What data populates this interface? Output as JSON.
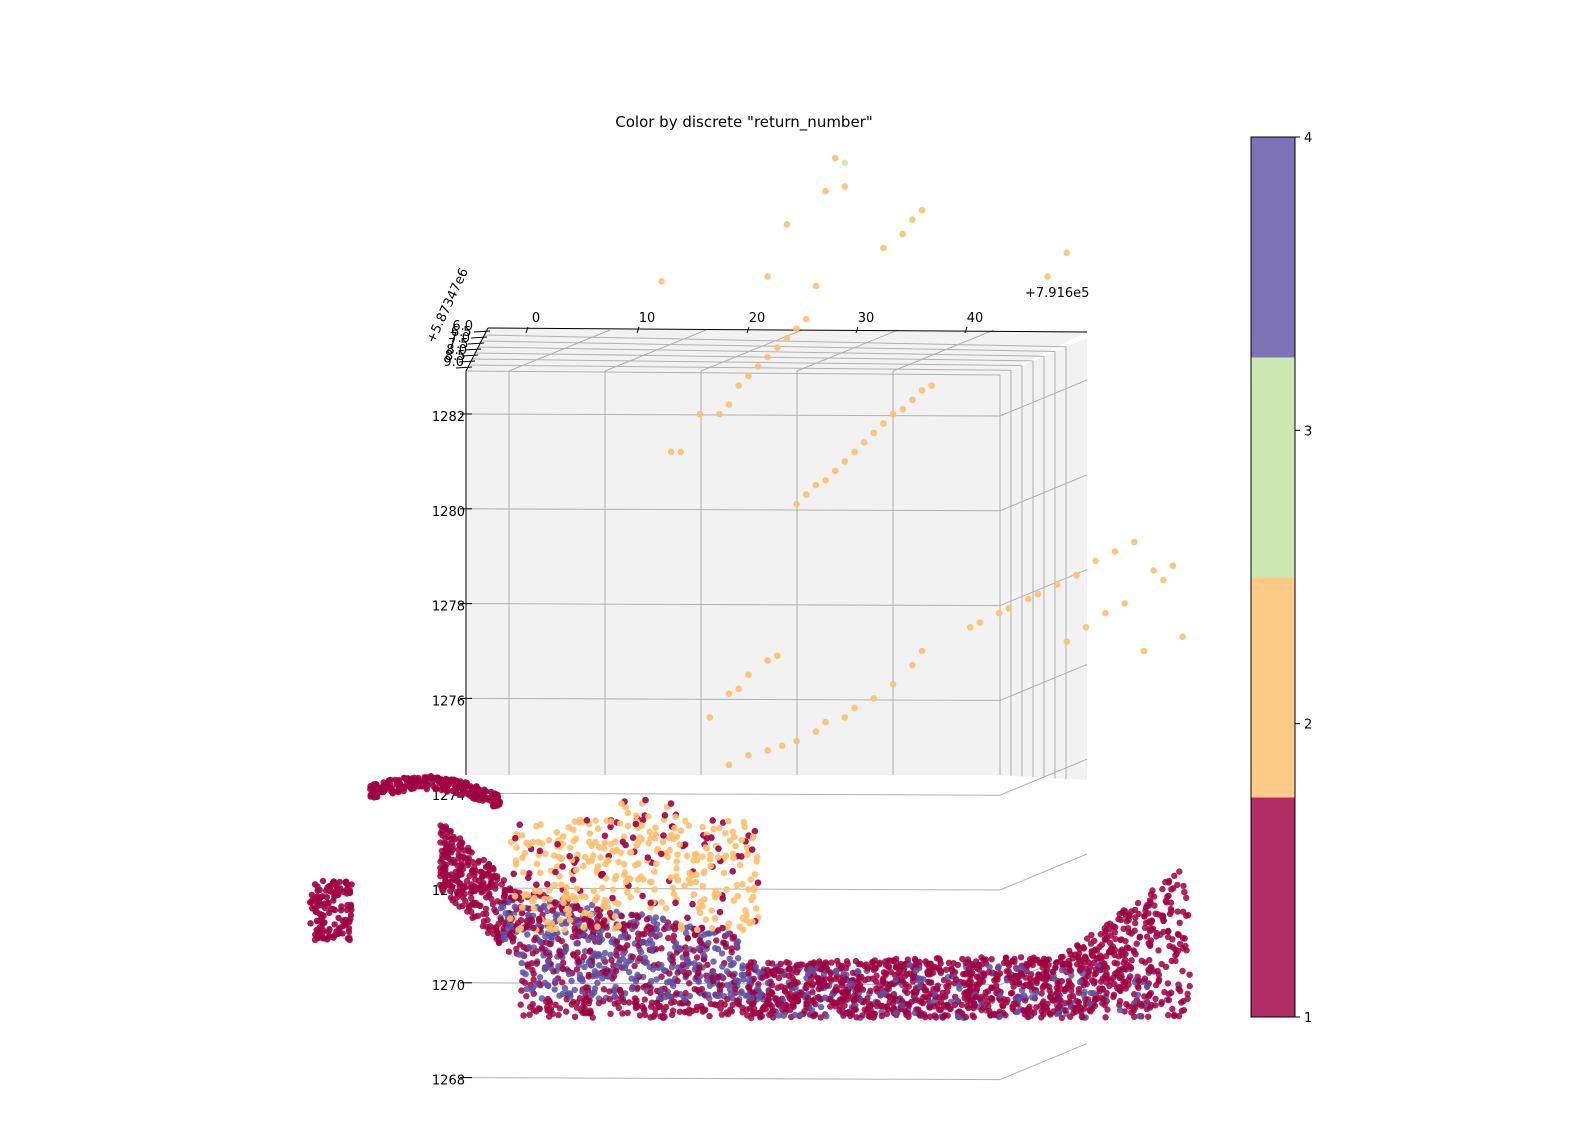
{
  "chart_data": {
    "type": "scatter",
    "title": "Color by discrete \"return_number\"",
    "x_axis": {
      "offset_label": "+7.916e5",
      "ticks": [
        "0",
        "10",
        "20",
        "30",
        "40"
      ]
    },
    "y_axis": {
      "offset_label": "+5.87347e6",
      "ticks": [
        "6.0",
        "6.5",
        "7.0",
        "7.5",
        "8.0",
        "8.5",
        "9.0"
      ]
    },
    "z_axis": {
      "ticks": [
        "1282",
        "1280",
        "1278",
        "1276",
        "1274",
        "1272",
        "1270",
        "1268"
      ]
    },
    "grid": true,
    "colorbar": {
      "ticks": [
        "1",
        "2",
        "3",
        "4"
      ],
      "levels": [
        {
          "value": 1,
          "color": "#ae2d65"
        },
        {
          "value": 2,
          "color": "#fdcb88"
        },
        {
          "value": 3,
          "color": "#cce8b2"
        },
        {
          "value": 4,
          "color": "#7e73b6"
        }
      ]
    },
    "point_colors": {
      "1": "#9e0142",
      "2": "#fdbf6f",
      "3": "#c7e9ad",
      "4": "#5e4fa2"
    },
    "series": [
      {
        "return_number": 2,
        "points": [
          [
            8,
            1294.5,
            7.5
          ],
          [
            17,
            1293.6,
            7.5
          ],
          [
            18,
            1293.5,
            7.3
          ],
          [
            21,
            1292.5,
            7.0
          ],
          [
            25,
            1290.3,
            7.5
          ],
          [
            28,
            1289.3,
            7.6
          ],
          [
            29,
            1289.5,
            7.4
          ],
          [
            30,
            1286.7,
            7.6
          ],
          [
            32,
            1286.8,
            7.4
          ],
          [
            36,
            1285.5,
            7.5
          ],
          [
            38,
            1285.8,
            7.4
          ],
          [
            39,
            1286.1,
            7.5
          ],
          [
            40,
            1286.3,
            7.6
          ],
          [
            13,
            1284.8,
            7.4
          ],
          [
            20,
            1287.8,
            7.3
          ],
          [
            26,
            1286.0,
            7.2
          ],
          [
            24,
            1284.9,
            7.5
          ],
          [
            29,
            1284.7,
            7.8
          ],
          [
            31,
            1287.4,
            7.5
          ],
          [
            14.0,
            1281.2,
            7.0
          ],
          [
            15.0,
            1281.2,
            7.0
          ],
          [
            17.0,
            1282.0,
            7.0
          ],
          [
            19.0,
            1282.0,
            7.0
          ],
          [
            20.0,
            1282.2,
            7.0
          ],
          [
            21.0,
            1282.6,
            7.0
          ],
          [
            22.0,
            1282.8,
            7.0
          ],
          [
            23.0,
            1283.0,
            7.0
          ],
          [
            24.0,
            1283.2,
            7.0
          ],
          [
            25.0,
            1283.4,
            7.0
          ],
          [
            26.0,
            1283.6,
            7.0
          ],
          [
            27.0,
            1283.8,
            7.0
          ],
          [
            28.0,
            1284.0,
            7.0
          ],
          [
            27.0,
            1280.1,
            7.0
          ],
          [
            28.0,
            1280.3,
            7.0
          ],
          [
            29.0,
            1280.5,
            7.0
          ],
          [
            30.0,
            1280.6,
            7.0
          ],
          [
            31.0,
            1280.8,
            7.0
          ],
          [
            32.0,
            1281.0,
            7.0
          ],
          [
            33.0,
            1281.2,
            7.0
          ],
          [
            34.0,
            1281.4,
            7.0
          ],
          [
            35.0,
            1281.6,
            7.0
          ],
          [
            36.0,
            1281.8,
            7.0
          ],
          [
            37.0,
            1282.0,
            7.0
          ],
          [
            38.0,
            1282.1,
            7.0
          ],
          [
            39.0,
            1282.3,
            7.0
          ],
          [
            40.0,
            1282.5,
            7.0
          ],
          [
            41.0,
            1282.6,
            7.0
          ],
          [
            18.0,
            1275.6,
            7.0
          ],
          [
            20.0,
            1276.1,
            7.0
          ],
          [
            21.0,
            1276.2,
            7.0
          ],
          [
            22.0,
            1276.5,
            7.0
          ],
          [
            24.0,
            1276.8,
            7.0
          ],
          [
            25.0,
            1276.9,
            7.0
          ],
          [
            20.0,
            1274.6,
            7.0
          ],
          [
            22.0,
            1274.8,
            7.0
          ],
          [
            24.0,
            1274.9,
            7.0
          ],
          [
            25.5,
            1275.0,
            7.0
          ],
          [
            27.0,
            1275.1,
            7.0
          ],
          [
            29.0,
            1275.3,
            7.0
          ],
          [
            30.0,
            1275.5,
            7.0
          ],
          [
            32.0,
            1275.6,
            7.0
          ],
          [
            33.0,
            1275.8,
            7.0
          ],
          [
            35.0,
            1276.0,
            7.0
          ],
          [
            37.0,
            1276.3,
            7.0
          ],
          [
            39.0,
            1276.7,
            7.0
          ],
          [
            40.0,
            1277.0,
            7.0
          ],
          [
            45.0,
            1277.5,
            7.0
          ],
          [
            46.0,
            1277.6,
            7.0
          ],
          [
            48.0,
            1277.8,
            7.0
          ],
          [
            49.0,
            1277.9,
            7.0
          ],
          [
            51.0,
            1278.1,
            7.0
          ],
          [
            52.0,
            1278.2,
            7.0
          ],
          [
            54.0,
            1278.4,
            7.0
          ],
          [
            56.0,
            1278.6,
            7.0
          ],
          [
            58.0,
            1278.9,
            7.0
          ],
          [
            60.0,
            1279.1,
            7.0
          ],
          [
            62.0,
            1279.3,
            7.0
          ],
          [
            64.0,
            1278.7,
            7.0
          ],
          [
            65.0,
            1278.5,
            7.0
          ],
          [
            66.0,
            1278.8,
            7.0
          ],
          [
            68.0,
            1279.0,
            7.0
          ],
          [
            55.0,
            1277.2,
            7.0
          ],
          [
            57.0,
            1277.5,
            7.0
          ],
          [
            59.0,
            1277.8,
            7.0
          ],
          [
            61.0,
            1278.0,
            7.0
          ],
          [
            63.0,
            1277.0,
            7.0
          ],
          [
            67.0,
            1277.3,
            7.0
          ],
          [
            70.0,
            1278.9,
            7.0
          ],
          [
            71.0,
            1279.0,
            7.0
          ],
          [
            53.0,
            1284.9,
            7.0
          ],
          [
            55.0,
            1285.4,
            7.0
          ],
          [
            5.0,
            1260.6,
            7.2
          ],
          [
            7.0,
            1260.8,
            7.2
          ],
          [
            8.0,
            1260.1,
            7.2
          ],
          [
            9.0,
            1260.5,
            7.2
          ],
          [
            10.0,
            1260.9,
            7.2
          ],
          [
            11.0,
            1259.8,
            7.2
          ],
          [
            12.0,
            1260.2,
            7.2
          ],
          [
            13.0,
            1259.4,
            7.2
          ],
          [
            14.0,
            1259.9,
            7.2
          ],
          [
            15.0,
            1260.3,
            7.2
          ],
          [
            16.0,
            1259.1,
            7.2
          ],
          [
            17.0,
            1258.7,
            7.2
          ],
          [
            18.0,
            1258.4,
            7.2
          ],
          [
            19.0,
            1258.9,
            7.2
          ],
          [
            20.0,
            1259.3,
            7.2
          ],
          [
            6.0,
            1259.2,
            7.2
          ],
          [
            7.5,
            1258.9,
            7.2
          ],
          [
            9.5,
            1258.6,
            7.2
          ],
          [
            11.5,
            1258.3,
            7.2
          ],
          [
            13.5,
            1258.0,
            7.2
          ],
          [
            15.5,
            1257.7,
            7.2
          ],
          [
            17.5,
            1257.4,
            7.2
          ],
          [
            19.5,
            1257.9,
            7.2
          ],
          [
            21.0,
            1257.6,
            7.2
          ],
          [
            22.0,
            1257.2,
            7.2
          ],
          [
            10.5,
            1261.4,
            7.2
          ],
          [
            12.5,
            1261.1,
            7.2
          ],
          [
            14.5,
            1260.8,
            7.2
          ],
          [
            16.5,
            1260.4,
            7.2
          ],
          [
            18.5,
            1260.0,
            7.2
          ],
          [
            6.5,
            1261.2,
            7.2
          ],
          [
            8.5,
            1261.6,
            7.2
          ],
          [
            15.0,
            1261.9,
            7.2
          ],
          [
            16.0,
            1261.3,
            7.2
          ],
          [
            17.0,
            1260.9,
            7.2
          ]
        ]
      },
      {
        "return_number": 3,
        "points": [
          [
            32,
            1287.3,
            7.5
          ],
          [
            41,
            1289.8,
            7.4
          ],
          [
            24,
            1257.0,
            7.2
          ],
          [
            28,
            1256.4,
            7.2
          ],
          [
            34,
            1255.3,
            7.2
          ],
          [
            13,
            1258.4,
            7.2
          ]
        ]
      },
      {
        "return_number": 1,
        "points": [
          [
            -12,
            1261.5,
            7.0
          ],
          [
            -10,
            1261.9,
            7.0
          ],
          [
            -8,
            1261.8,
            7.0
          ],
          [
            -6,
            1261.6,
            7.0
          ],
          [
            -4,
            1261.3,
            7.0
          ],
          [
            -2,
            1261.1,
            7.0
          ],
          [
            -1,
            1260.8,
            7.0
          ],
          [
            -14,
            1261.3,
            7.0
          ],
          [
            -5,
            1259.9,
            7.0
          ],
          [
            -3,
            1259.2,
            7.0
          ],
          [
            -1,
            1258.3,
            7.0
          ],
          [
            1,
            1257.5,
            7.0
          ],
          [
            3,
            1256.6,
            7.0
          ],
          [
            5,
            1255.8,
            7.0
          ],
          [
            8,
            1255.0,
            7.0
          ],
          [
            11,
            1254.4,
            7.0
          ],
          [
            14,
            1253.9,
            7.0
          ],
          [
            18,
            1253.6,
            7.0
          ],
          [
            22,
            1253.7,
            7.0
          ],
          [
            26,
            1254.0,
            7.0
          ],
          [
            30,
            1254.2,
            7.0
          ],
          [
            34,
            1254.3,
            7.0
          ],
          [
            38,
            1254.4,
            7.0
          ],
          [
            42,
            1254.5,
            7.0
          ],
          [
            46,
            1254.7,
            7.0
          ],
          [
            50,
            1255.2,
            7.0
          ],
          [
            54,
            1256.0,
            7.0
          ],
          [
            58,
            1256.9,
            7.0
          ],
          [
            62,
            1257.6,
            7.0
          ],
          [
            66,
            1257.8,
            7.0
          ],
          [
            70,
            1257.7,
            7.0
          ],
          [
            -25,
            1258.8,
            7.0
          ],
          [
            -24,
            1258.0,
            7.0
          ],
          [
            -23,
            1257.2,
            7.0
          ],
          [
            -22,
            1256.6,
            7.0
          ]
        ]
      },
      {
        "return_number": 4,
        "points": [
          [
            3,
            1256.1,
            7.0
          ],
          [
            5,
            1255.4,
            7.0
          ],
          [
            7,
            1254.8,
            7.0
          ],
          [
            9,
            1254.3,
            7.0
          ],
          [
            11,
            1253.9,
            7.0
          ],
          [
            13,
            1253.6,
            7.0
          ],
          [
            15,
            1253.5,
            7.0
          ],
          [
            17,
            1253.4,
            7.0
          ],
          [
            19,
            1253.3,
            7.0
          ],
          [
            21,
            1253.4,
            7.0
          ],
          [
            14,
            1254.7,
            7.0
          ],
          [
            16,
            1254.4,
            7.0
          ],
          [
            33,
            1253.6,
            7.0
          ],
          [
            47,
            1253.9,
            7.0
          ],
          [
            55,
            1254.6,
            7.0
          ],
          [
            63,
            1255.8,
            7.0
          ]
        ]
      }
    ]
  }
}
